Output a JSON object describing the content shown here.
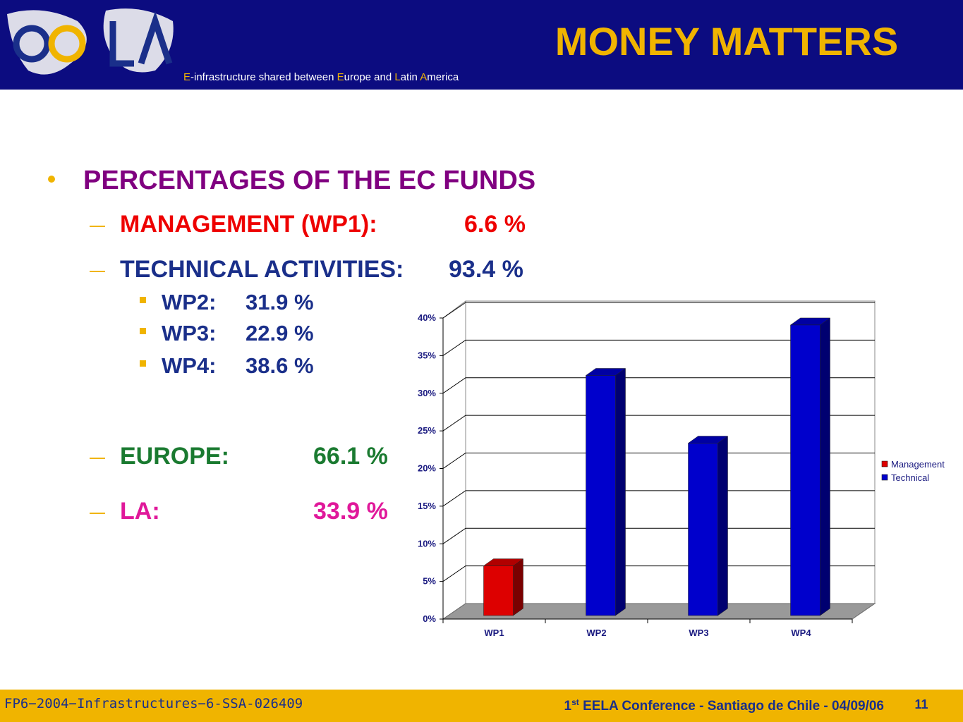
{
  "header": {
    "subtitle_parts": [
      "E",
      "-infrastructure shared between ",
      "E",
      "urope and ",
      "L",
      "atin ",
      "A",
      "merica"
    ],
    "title": "MONEY MATTERS"
  },
  "body": {
    "heading": "PERCENTAGES OF THE EC FUNDS",
    "items": [
      {
        "label": "MANAGEMENT (WP1):",
        "value": "6.6 %"
      },
      {
        "label": "TECHNICAL ACTIVITIES:",
        "value": "93.4 %"
      }
    ],
    "subitems": [
      {
        "label": "WP2:",
        "value": "31.9 %"
      },
      {
        "label": "WP3:",
        "value": "22.9 %"
      },
      {
        "label": "WP4:",
        "value": "38.6 %"
      }
    ],
    "regions": [
      {
        "label": "EUROPE:",
        "value": "66.1 %"
      },
      {
        "label": "LA:",
        "value": "33.9 %"
      }
    ]
  },
  "footer": {
    "project": "FP6−2004−Infrastructures−6-SSA-026409",
    "conference_parts": [
      "1",
      "st",
      " EELA Conference -  Santiago de Chile - 04/09/06"
    ],
    "page": "11"
  },
  "chart_data": {
    "type": "bar",
    "categories": [
      "WP1",
      "WP2",
      "WP3",
      "WP4"
    ],
    "series": [
      {
        "name": "Management",
        "color": "#dd0000",
        "values": [
          6.6,
          null,
          null,
          null
        ]
      },
      {
        "name": "Technical",
        "color": "#0000cc",
        "values": [
          null,
          31.9,
          22.9,
          38.6
        ]
      }
    ],
    "ylim": [
      0,
      40
    ],
    "yticks": [
      {
        "value": 0,
        "label": "0%"
      },
      {
        "value": 5,
        "label": "5%"
      },
      {
        "value": 10,
        "label": "10%"
      },
      {
        "value": 15,
        "label": "15%"
      },
      {
        "value": 20,
        "label": "20%"
      },
      {
        "value": 25,
        "label": "25%"
      },
      {
        "value": 30,
        "label": "30%"
      },
      {
        "value": 35,
        "label": "35%"
      },
      {
        "value": 40,
        "label": "40%"
      }
    ],
    "grid": true,
    "legend": "right"
  }
}
